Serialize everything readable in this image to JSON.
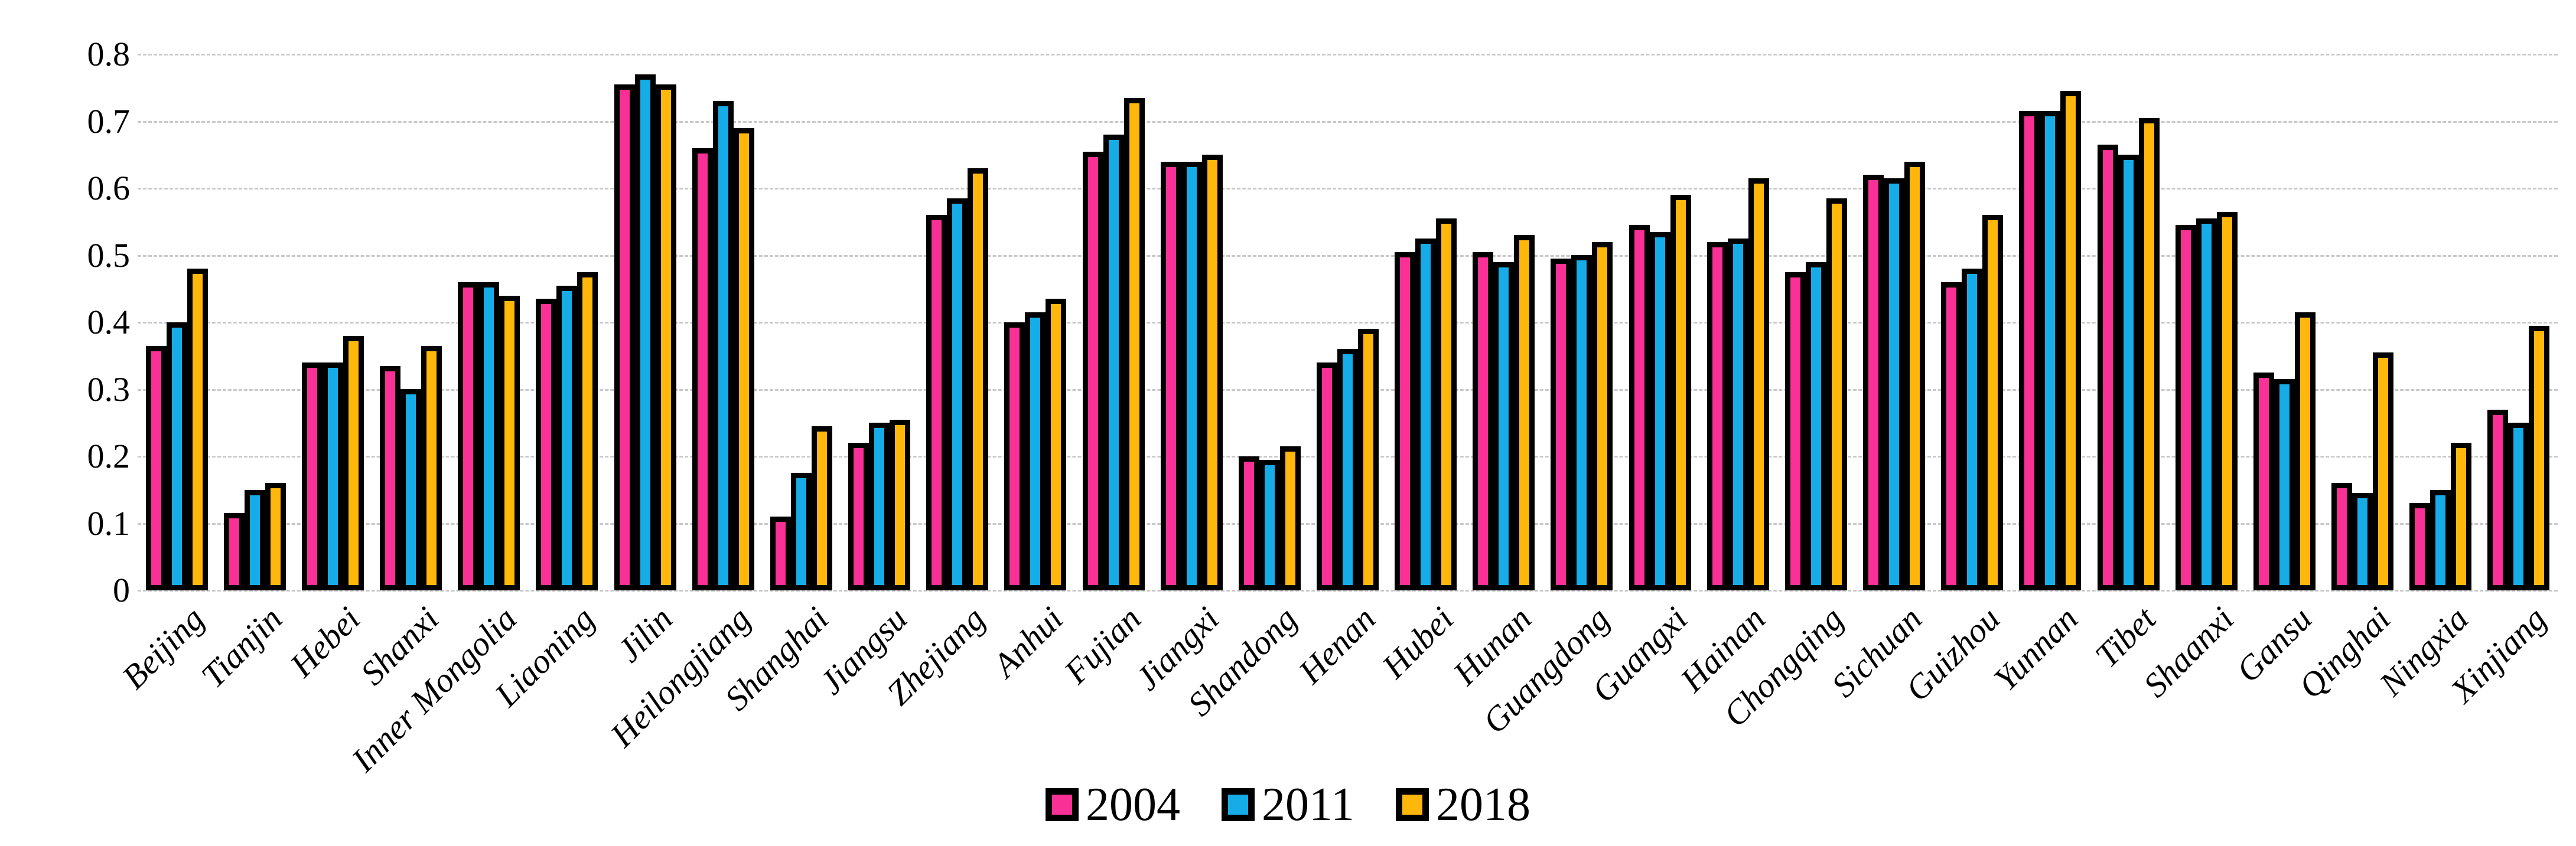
{
  "page": {
    "background": "#FFFFFF"
  },
  "chart_data": {
    "type": "bar",
    "title": "",
    "xlabel": "",
    "ylabel": "",
    "categories": [
      "Beijing",
      "Tianjin",
      "Hebei",
      "Shanxi",
      "Inner Mongolia",
      "Liaoning",
      "Jilin",
      "Heilongjiang",
      "Shanghai",
      "Jiangsu",
      "Zhejiang",
      "Anhui",
      "Fujian",
      "Jiangxi",
      "Shandong",
      "Henan",
      "Hubei",
      "Hunan",
      "Guangdong",
      "Guangxi",
      "Hainan",
      "Chongqing",
      "Sichuan",
      "Guizhou",
      "Yunnan",
      "Tibet",
      "Shaanxi",
      "Gansu",
      "Qinghai",
      "Ningxia",
      "Xinjiang"
    ],
    "series": [
      {
        "name": "2004",
        "color": "#F93095",
        "values": [
          0.365,
          0.115,
          0.34,
          0.335,
          0.46,
          0.435,
          0.755,
          0.66,
          0.11,
          0.22,
          0.56,
          0.4,
          0.655,
          0.64,
          0.2,
          0.34,
          0.505,
          0.505,
          0.495,
          0.545,
          0.52,
          0.475,
          0.62,
          0.46,
          0.715,
          0.665,
          0.545,
          0.325,
          0.16,
          0.13,
          0.27
        ]
      },
      {
        "name": "2011",
        "color": "#16ACE8",
        "values": [
          0.4,
          0.15,
          0.34,
          0.3,
          0.46,
          0.455,
          0.77,
          0.73,
          0.175,
          0.25,
          0.585,
          0.415,
          0.68,
          0.64,
          0.195,
          0.36,
          0.525,
          0.49,
          0.5,
          0.535,
          0.525,
          0.49,
          0.615,
          0.48,
          0.715,
          0.65,
          0.555,
          0.315,
          0.145,
          0.15,
          0.25
        ]
      },
      {
        "name": "2018",
        "color": "#FFB70C",
        "values": [
          0.48,
          0.16,
          0.38,
          0.365,
          0.44,
          0.475,
          0.755,
          0.69,
          0.245,
          0.255,
          0.63,
          0.435,
          0.735,
          0.65,
          0.215,
          0.39,
          0.555,
          0.53,
          0.52,
          0.59,
          0.615,
          0.585,
          0.64,
          0.56,
          0.745,
          0.705,
          0.565,
          0.415,
          0.355,
          0.22,
          0.395
        ]
      }
    ],
    "ylim": [
      0,
      0.8
    ],
    "ytick_labels": [
      "0",
      "0.1",
      "0.2",
      "0.3",
      "0.4",
      "0.5",
      "0.6",
      "0.7",
      "0.8"
    ],
    "grid": {
      "horizontal": true,
      "style": "dashed",
      "color": "#C9C9C9"
    },
    "bar_outline_color": "#000000",
    "legend": {
      "position": "bottom-center",
      "entries": [
        "2004",
        "2011",
        "2018"
      ]
    }
  }
}
